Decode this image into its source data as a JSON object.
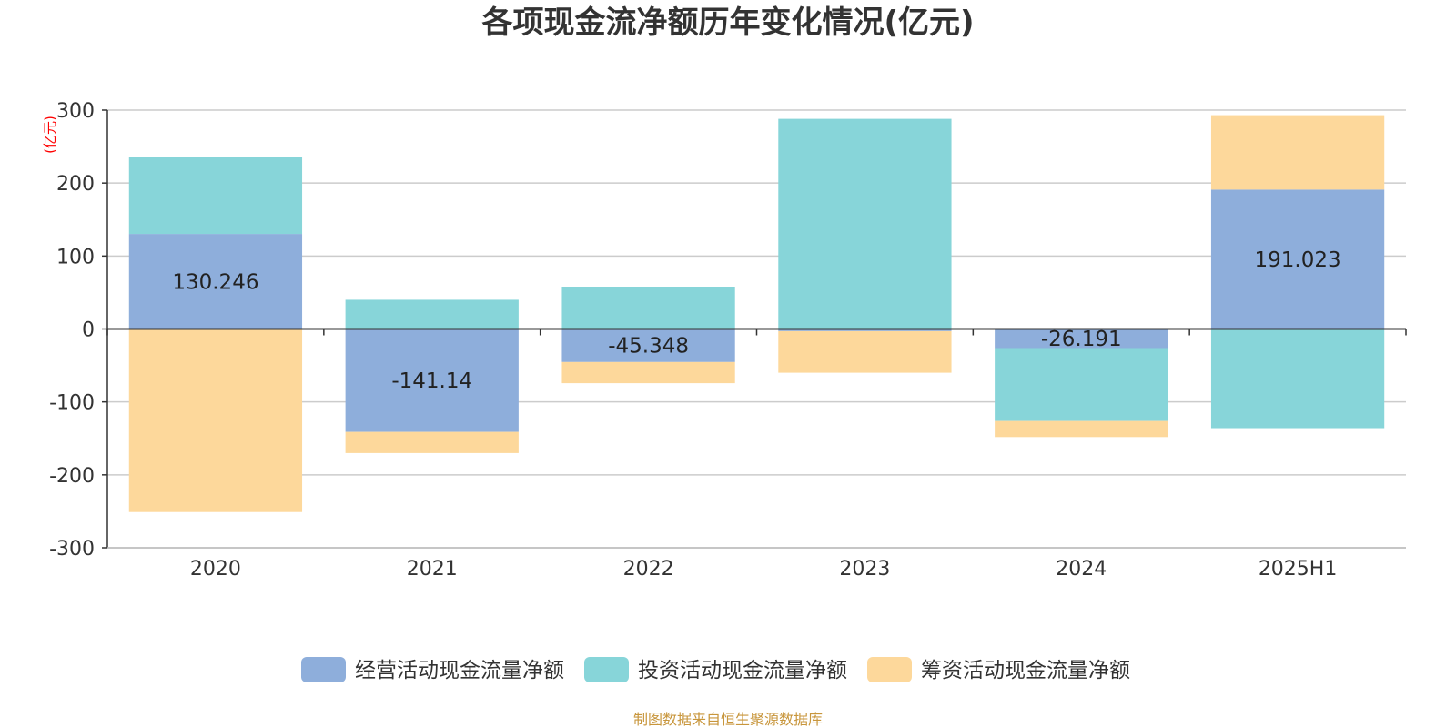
{
  "chart_data": {
    "type": "bar",
    "stacked": true,
    "title": "各项现金流净额历年变化情况(亿元)",
    "unit_label": "(亿元)",
    "categories": [
      "2020",
      "2021",
      "2022",
      "2023",
      "2024",
      "2025H1"
    ],
    "ylim": [
      -300,
      300
    ],
    "yticks": [
      300,
      200,
      100,
      0,
      -100,
      -200,
      -300
    ],
    "grid": true,
    "legend_position": "bottom",
    "series": [
      {
        "name": "经营活动现金流量净额",
        "color": "#8eaedb",
        "values": [
          130.246,
          -141.14,
          -45.348,
          -3.0,
          -26.191,
          191.023
        ]
      },
      {
        "name": "投资活动现金流量净额",
        "color": "#87d5d9",
        "values": [
          105,
          40,
          58,
          288,
          -100,
          -136
        ]
      },
      {
        "name": "筹资活动现金流量净额",
        "color": "#fdd89b",
        "values": [
          -251,
          -29,
          -29,
          -57,
          -22,
          102
        ]
      }
    ],
    "data_labels": [
      "130.246",
      "-141.14",
      "-45.348",
      "",
      "-26.191",
      "191.023"
    ],
    "source": "制图数据来自恒生聚源数据库"
  }
}
